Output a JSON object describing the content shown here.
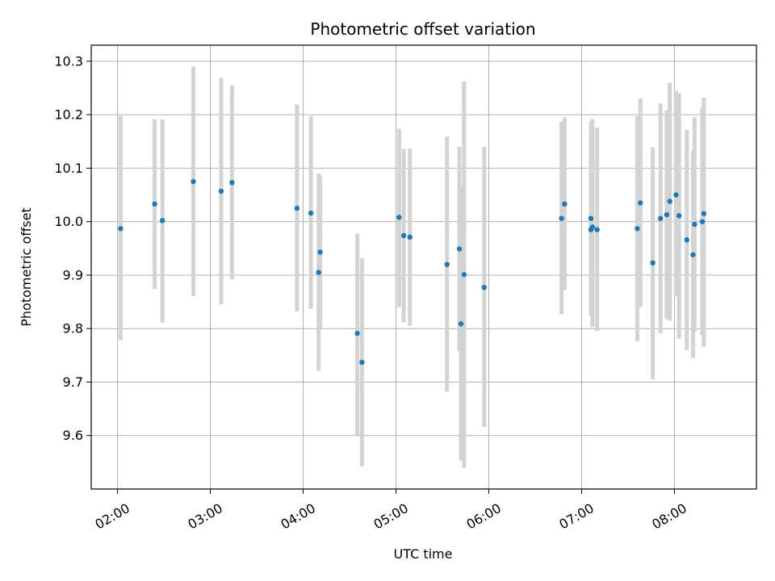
{
  "chart_data": {
    "type": "scatter",
    "title": "Photometric offset variation",
    "xlabel": "UTC time",
    "ylabel": "Photometric offset",
    "x_ticks": [
      "02:00",
      "03:00",
      "04:00",
      "05:00",
      "06:00",
      "07:00",
      "08:00"
    ],
    "y_ticks": [
      "9.6",
      "9.7",
      "9.8",
      "9.9",
      "10.0",
      "10.1",
      "10.2",
      "10.3"
    ],
    "xlim": [
      "01:43",
      "08:53"
    ],
    "ylim": [
      9.5,
      10.33
    ],
    "grid": true,
    "point_color": "#1f77b4",
    "errorbar_color": "#d3d3d3",
    "series": [
      {
        "points": [
          {
            "x": "02:02",
            "y": 9.987,
            "ylo": 9.778,
            "yhi": 10.198
          },
          {
            "x": "02:24",
            "y": 10.033,
            "ylo": 9.874,
            "yhi": 10.192
          },
          {
            "x": "02:29",
            "y": 10.002,
            "ylo": 9.811,
            "yhi": 10.191
          },
          {
            "x": "02:49",
            "y": 10.075,
            "ylo": 9.861,
            "yhi": 10.29
          },
          {
            "x": "03:07",
            "y": 10.057,
            "ylo": 9.845,
            "yhi": 10.269
          },
          {
            "x": "03:14",
            "y": 10.073,
            "ylo": 9.892,
            "yhi": 10.255
          },
          {
            "x": "03:56",
            "y": 10.025,
            "ylo": 9.832,
            "yhi": 10.219
          },
          {
            "x": "04:05",
            "y": 10.016,
            "ylo": 9.837,
            "yhi": 10.197
          },
          {
            "x": "04:10",
            "y": 9.905,
            "ylo": 9.721,
            "yhi": 10.09
          },
          {
            "x": "04:11",
            "y": 9.943,
            "ylo": 9.801,
            "yhi": 10.086
          },
          {
            "x": "04:35",
            "y": 9.791,
            "ylo": 9.601,
            "yhi": 9.978
          },
          {
            "x": "04:38",
            "y": 9.737,
            "ylo": 9.542,
            "yhi": 9.932
          },
          {
            "x": "05:02",
            "y": 10.008,
            "ylo": 9.84,
            "yhi": 10.174
          },
          {
            "x": "05:05",
            "y": 9.974,
            "ylo": 9.812,
            "yhi": 10.136
          },
          {
            "x": "05:09",
            "y": 9.971,
            "ylo": 9.805,
            "yhi": 10.137
          },
          {
            "x": "05:33",
            "y": 9.92,
            "ylo": 9.682,
            "yhi": 10.159
          },
          {
            "x": "05:41",
            "y": 9.949,
            "ylo": 9.758,
            "yhi": 10.14
          },
          {
            "x": "05:42",
            "y": 9.809,
            "ylo": 9.553,
            "yhi": 10.065
          },
          {
            "x": "05:44",
            "y": 9.901,
            "ylo": 9.54,
            "yhi": 10.262
          },
          {
            "x": "05:57",
            "y": 9.877,
            "ylo": 9.616,
            "yhi": 10.14
          },
          {
            "x": "06:47",
            "y": 10.006,
            "ylo": 9.827,
            "yhi": 10.187
          },
          {
            "x": "06:49",
            "y": 10.033,
            "ylo": 9.872,
            "yhi": 10.195
          },
          {
            "x": "07:06",
            "y": 9.985,
            "ylo": 9.83,
            "yhi": 10.14
          },
          {
            "x": "07:06",
            "y": 10.006,
            "ylo": 9.823,
            "yhi": 10.188
          },
          {
            "x": "07:07",
            "y": 9.99,
            "ylo": 9.803,
            "yhi": 10.192
          },
          {
            "x": "07:10",
            "y": 9.985,
            "ylo": 9.796,
            "yhi": 10.176
          },
          {
            "x": "07:36",
            "y": 9.987,
            "ylo": 9.776,
            "yhi": 10.197
          },
          {
            "x": "07:38",
            "y": 10.035,
            "ylo": 9.84,
            "yhi": 10.23
          },
          {
            "x": "07:46",
            "y": 9.923,
            "ylo": 9.705,
            "yhi": 10.139
          },
          {
            "x": "07:51",
            "y": 10.006,
            "ylo": 9.791,
            "yhi": 10.221
          },
          {
            "x": "07:55",
            "y": 10.013,
            "ylo": 9.818,
            "yhi": 10.208
          },
          {
            "x": "07:57",
            "y": 10.038,
            "ylo": 9.815,
            "yhi": 10.26
          },
          {
            "x": "08:01",
            "y": 10.05,
            "ylo": 9.86,
            "yhi": 10.245
          },
          {
            "x": "08:03",
            "y": 10.011,
            "ylo": 9.781,
            "yhi": 10.24
          },
          {
            "x": "08:08",
            "y": 9.966,
            "ylo": 9.76,
            "yhi": 10.172
          },
          {
            "x": "08:12",
            "y": 9.938,
            "ylo": 9.745,
            "yhi": 10.133
          },
          {
            "x": "08:13",
            "y": 9.995,
            "ylo": 9.795,
            "yhi": 10.195
          },
          {
            "x": "08:18",
            "y": 10.0,
            "ylo": 9.788,
            "yhi": 10.212
          },
          {
            "x": "08:19",
            "y": 10.015,
            "ylo": 9.766,
            "yhi": 10.232
          }
        ]
      }
    ]
  }
}
